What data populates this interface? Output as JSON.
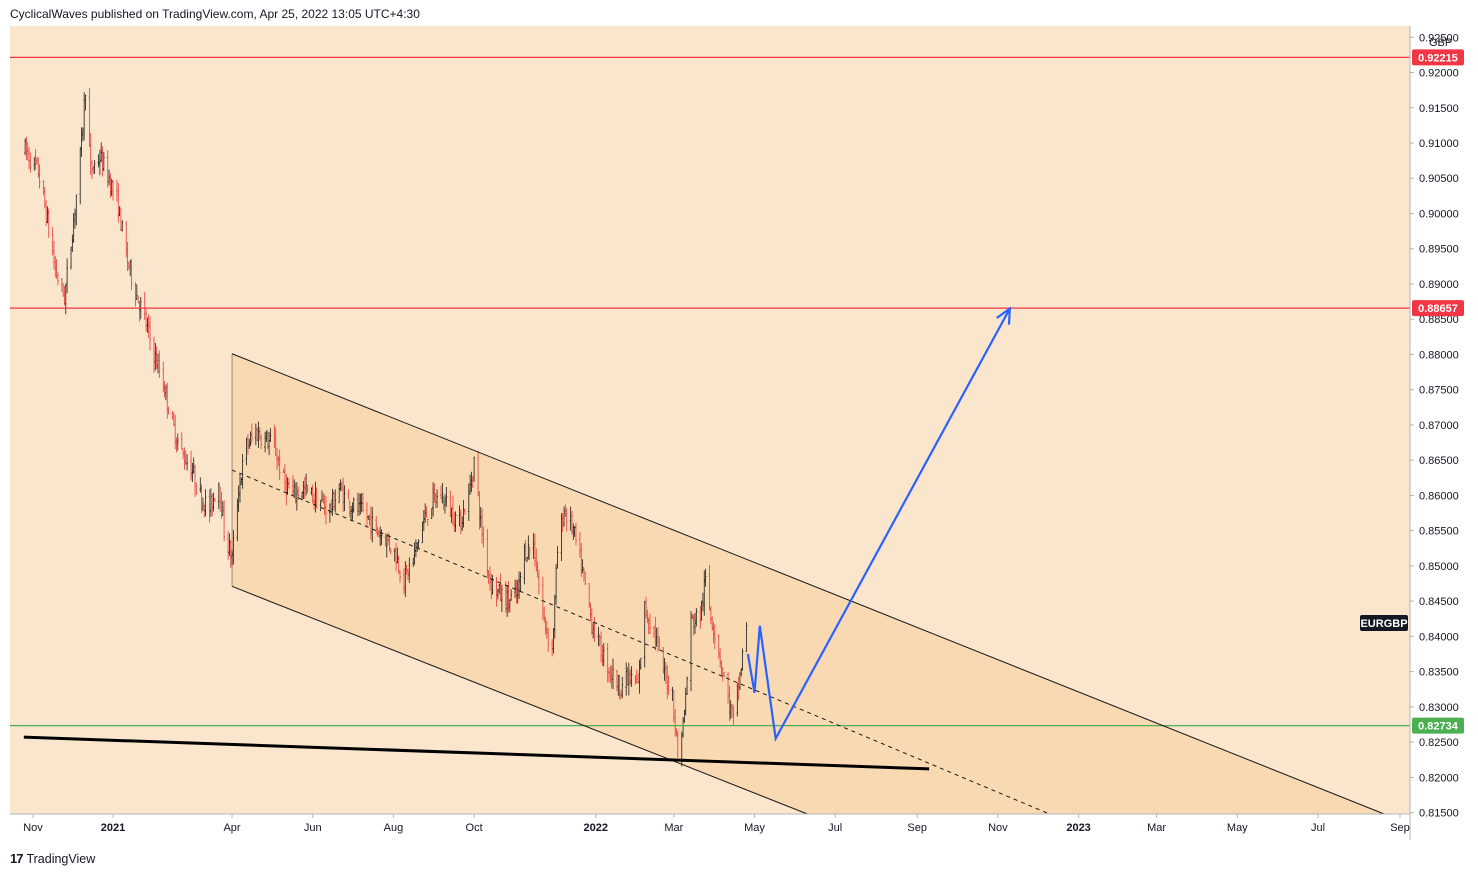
{
  "header": {
    "publish_line": "CyclicalWaves published on TradingView.com, Apr 25, 2022 13:05 UTC+4:30"
  },
  "footer": {
    "brand": "TradingView",
    "logo_icon": "tradingview-logo-icon"
  },
  "colors": {
    "plot_bg": "#fae5cd",
    "channel_fill": "#f8d9b2",
    "bull_candle": "#1a1a1a",
    "bear_candle": "#e53935",
    "resistance_line": "#f23645",
    "support_line": "#4caf50",
    "projection": "#2962ff",
    "trendline": "#000000"
  },
  "chart_data": {
    "type": "candlestick",
    "symbol_label": "EURGBP",
    "currency": "GBP",
    "x_ticks": [
      {
        "label": "Nov",
        "date": "2020-11-01",
        "bold": false
      },
      {
        "label": "2021",
        "date": "2021-01-01",
        "bold": true
      },
      {
        "label": "Apr",
        "date": "2021-04-01",
        "bold": false
      },
      {
        "label": "Jun",
        "date": "2021-06-01",
        "bold": false
      },
      {
        "label": "Aug",
        "date": "2021-08-01",
        "bold": false
      },
      {
        "label": "Oct",
        "date": "2021-10-01",
        "bold": false
      },
      {
        "label": "2022",
        "date": "2022-01-01",
        "bold": true
      },
      {
        "label": "Mar",
        "date": "2022-03-01",
        "bold": false
      },
      {
        "label": "May",
        "date": "2022-05-01",
        "bold": false
      },
      {
        "label": "Jul",
        "date": "2022-07-01",
        "bold": false
      },
      {
        "label": "Sep",
        "date": "2022-09-01",
        "bold": false
      },
      {
        "label": "Nov",
        "date": "2022-11-01",
        "bold": false
      },
      {
        "label": "2023",
        "date": "2023-01-01",
        "bold": true
      },
      {
        "label": "Mar",
        "date": "2023-03-01",
        "bold": false
      },
      {
        "label": "May",
        "date": "2023-05-01",
        "bold": false
      },
      {
        "label": "Jul",
        "date": "2023-07-01",
        "bold": false
      },
      {
        "label": "Sep",
        "date": "2023-09-01",
        "bold": false
      }
    ],
    "y_ticks": [
      "0.92500",
      "0.92000",
      "0.91500",
      "0.91000",
      "0.90500",
      "0.90000",
      "0.89500",
      "0.89000",
      "0.88500",
      "0.88000",
      "0.87500",
      "0.87000",
      "0.86500",
      "0.86000",
      "0.85500",
      "0.85000",
      "0.84500",
      "0.84000",
      "0.83500",
      "0.83000",
      "0.82500",
      "0.82000",
      "0.81500"
    ],
    "y_range": [
      0.8148,
      0.9266
    ],
    "horizontal_levels": [
      {
        "label": "0.92215",
        "value": 0.92215,
        "color": "#f23645"
      },
      {
        "label": "0.88657",
        "value": 0.88657,
        "color": "#f23645"
      },
      {
        "label": "0.82734",
        "value": 0.82734,
        "color": "#4caf50"
      }
    ],
    "price_path": [
      [
        "2020-10-26",
        0.909
      ],
      [
        "2020-11-05",
        0.906
      ],
      [
        "2020-11-12",
        0.899
      ],
      [
        "2020-11-18",
        0.892
      ],
      [
        "2020-11-25",
        0.888
      ],
      [
        "2020-12-02",
        0.899
      ],
      [
        "2020-12-08",
        0.91
      ],
      [
        "2020-12-11",
        0.918
      ],
      [
        "2020-12-15",
        0.906
      ],
      [
        "2020-12-22",
        0.908
      ],
      [
        "2020-12-29",
        0.905
      ],
      [
        "2021-01-05",
        0.901
      ],
      [
        "2021-01-11",
        0.894
      ],
      [
        "2021-01-18",
        0.889
      ],
      [
        "2021-01-25",
        0.885
      ],
      [
        "2021-02-01",
        0.88
      ],
      [
        "2021-02-08",
        0.876
      ],
      [
        "2021-02-15",
        0.87
      ],
      [
        "2021-02-22",
        0.866
      ],
      [
        "2021-03-01",
        0.864
      ],
      [
        "2021-03-08",
        0.86
      ],
      [
        "2021-03-15",
        0.858
      ],
      [
        "2021-03-22",
        0.862
      ],
      [
        "2021-03-26",
        0.855
      ],
      [
        "2021-04-01",
        0.851
      ],
      [
        "2021-04-06",
        0.861
      ],
      [
        "2021-04-12",
        0.867
      ],
      [
        "2021-04-19",
        0.869
      ],
      [
        "2021-04-26",
        0.868
      ],
      [
        "2021-05-03",
        0.867
      ],
      [
        "2021-05-10",
        0.862
      ],
      [
        "2021-05-17",
        0.86
      ],
      [
        "2021-05-24",
        0.861
      ],
      [
        "2021-05-31",
        0.86
      ],
      [
        "2021-06-07",
        0.859
      ],
      [
        "2021-06-14",
        0.858
      ],
      [
        "2021-06-21",
        0.861
      ],
      [
        "2021-06-28",
        0.859
      ],
      [
        "2021-07-05",
        0.858
      ],
      [
        "2021-07-12",
        0.857
      ],
      [
        "2021-07-19",
        0.855
      ],
      [
        "2021-07-26",
        0.854
      ],
      [
        "2021-08-02",
        0.852
      ],
      [
        "2021-08-09",
        0.848
      ],
      [
        "2021-08-16",
        0.851
      ],
      [
        "2021-08-23",
        0.856
      ],
      [
        "2021-08-30",
        0.859
      ],
      [
        "2021-09-06",
        0.86
      ],
      [
        "2021-09-13",
        0.858
      ],
      [
        "2021-09-20",
        0.856
      ],
      [
        "2021-09-27",
        0.86
      ],
      [
        "2021-10-01",
        0.865
      ],
      [
        "2021-10-06",
        0.856
      ],
      [
        "2021-10-13",
        0.848
      ],
      [
        "2021-10-20",
        0.846
      ],
      [
        "2021-10-27",
        0.845
      ],
      [
        "2021-11-03",
        0.846
      ],
      [
        "2021-11-08",
        0.852
      ],
      [
        "2021-11-15",
        0.853
      ],
      [
        "2021-11-22",
        0.843
      ],
      [
        "2021-11-29",
        0.838
      ],
      [
        "2021-12-03",
        0.852
      ],
      [
        "2021-12-08",
        0.858
      ],
      [
        "2021-12-15",
        0.855
      ],
      [
        "2021-12-22",
        0.849
      ],
      [
        "2021-12-29",
        0.842
      ],
      [
        "2022-01-05",
        0.838
      ],
      [
        "2022-01-12",
        0.835
      ],
      [
        "2022-01-19",
        0.833
      ],
      [
        "2022-01-26",
        0.834
      ],
      [
        "2022-02-02",
        0.833
      ],
      [
        "2022-02-07",
        0.844
      ],
      [
        "2022-02-14",
        0.841
      ],
      [
        "2022-02-21",
        0.835
      ],
      [
        "2022-02-28",
        0.832
      ],
      [
        "2022-03-04",
        0.823
      ],
      [
        "2022-03-09",
        0.829
      ],
      [
        "2022-03-14",
        0.842
      ],
      [
        "2022-03-21",
        0.843
      ],
      [
        "2022-03-25",
        0.848
      ],
      [
        "2022-03-28",
        0.844
      ],
      [
        "2022-04-04",
        0.838
      ],
      [
        "2022-04-11",
        0.831
      ],
      [
        "2022-04-15",
        0.828
      ],
      [
        "2022-04-19",
        0.833
      ],
      [
        "2022-04-25",
        0.8415
      ]
    ],
    "channel": {
      "upper": [
        [
          "2021-04-01",
          0.8801
        ],
        [
          "2023-08-20",
          0.8148
        ]
      ],
      "lower": [
        [
          "2021-04-01",
          0.8471
        ],
        [
          "2022-06-10",
          0.8148
        ]
      ],
      "midline": [
        [
          "2021-04-01",
          0.8636
        ],
        [
          "2022-12-10",
          0.8148
        ]
      ]
    },
    "long_trendline": [
      [
        "2020-10-25",
        0.8257
      ],
      [
        "2022-09-10",
        0.8212
      ]
    ],
    "projection_path": [
      [
        "2022-04-26",
        0.8375
      ],
      [
        "2022-05-01",
        0.832
      ],
      [
        "2022-05-05",
        0.8415
      ],
      [
        "2022-05-17",
        0.8255
      ],
      [
        "2022-11-10",
        0.8865
      ]
    ]
  }
}
